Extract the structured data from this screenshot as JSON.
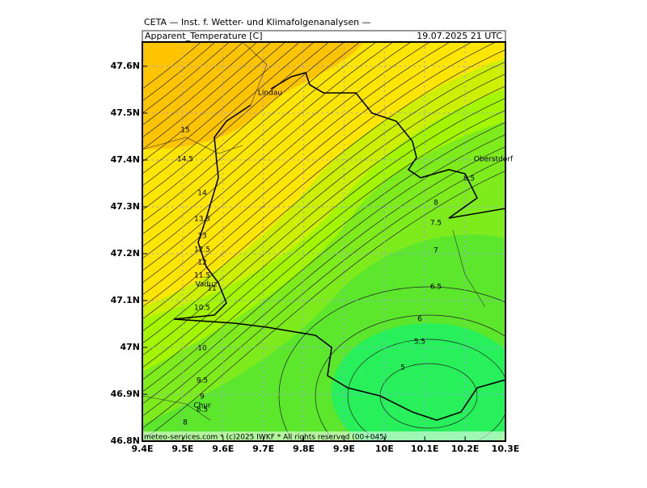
{
  "header": {
    "title": "CETA — Inst. f. Wetter- und Klimafolgenanalysen —",
    "field": "Apparent_Temperature [C]",
    "valid_time": "19.07.2025 21 UTC"
  },
  "map": {
    "lon_ticks": [
      {
        "value": 9.4,
        "label": "9.4E"
      },
      {
        "value": 9.5,
        "label": "9.5E"
      },
      {
        "value": 9.6,
        "label": "9.6E"
      },
      {
        "value": 9.7,
        "label": "9.7E"
      },
      {
        "value": 9.8,
        "label": "9.8E"
      },
      {
        "value": 9.9,
        "label": "9.9E"
      },
      {
        "value": 10,
        "label": "10E"
      },
      {
        "value": 10.1,
        "label": "10.1E"
      },
      {
        "value": 10.2,
        "label": "10.2E"
      },
      {
        "value": 10.3,
        "label": "10.3E"
      }
    ],
    "lat_ticks": [
      {
        "value": 46.8,
        "label": "46.8N"
      },
      {
        "value": 46.9,
        "label": "46.9N"
      },
      {
        "value": 47,
        "label": "47N"
      },
      {
        "value": 47.1,
        "label": "47.1N"
      },
      {
        "value": 47.2,
        "label": "47.2N"
      },
      {
        "value": 47.3,
        "label": "47.3N"
      },
      {
        "value": 47.4,
        "label": "47.4N"
      },
      {
        "value": 47.5,
        "label": "47.5N"
      },
      {
        "value": 47.6,
        "label": "47.6N"
      }
    ],
    "places": [
      "Lindau",
      "Oberstdorf",
      "Vaduz",
      "Chur"
    ],
    "contour_labels": [
      15,
      14.5,
      14,
      13.5,
      13,
      12.5,
      12,
      11.5,
      11,
      10.5,
      10,
      9.5,
      9,
      8.5,
      8,
      8.5,
      8,
      7.5,
      7,
      6.5,
      6,
      5.5,
      5
    ]
  },
  "footer": "meteo-services.com * (c)2025 IWKF * All rights reserved (00+045)"
}
